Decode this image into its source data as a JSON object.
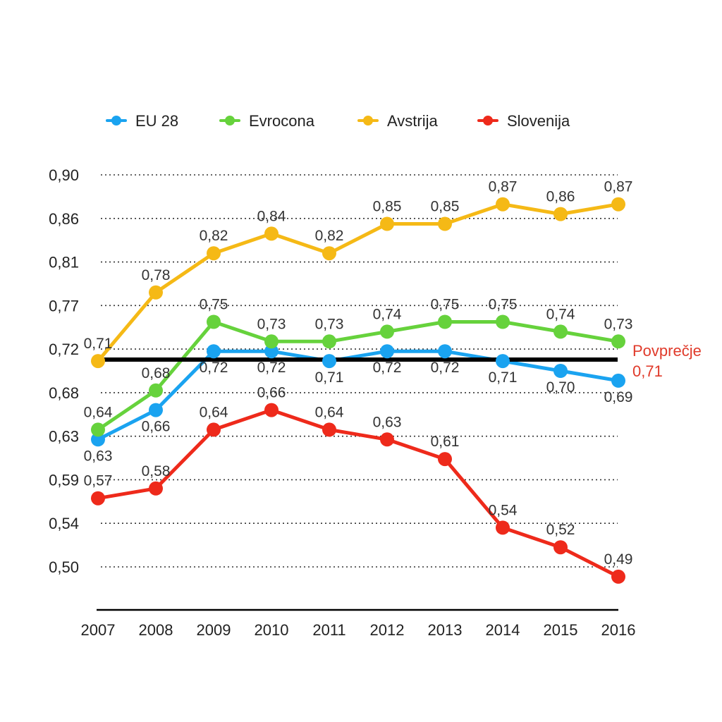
{
  "colors": {
    "eu28": "#1aa3f0",
    "evrocona": "#66d23c",
    "avstrija": "#f5b916",
    "slovenija": "#ee2a1b",
    "average_line": "#000000",
    "average_label": "#e03a2a",
    "grid": "#333333",
    "axis": "#000000"
  },
  "chart_data": {
    "type": "line",
    "x": [
      "2007",
      "2008",
      "2009",
      "2010",
      "2011",
      "2012",
      "2013",
      "2014",
      "2015",
      "2016"
    ],
    "yticks": [
      "0,50",
      "0,54",
      "0,59",
      "0,63",
      "0,68",
      "0,72",
      "0,77",
      "0,81",
      "0,86",
      "0,90"
    ],
    "ylim": [
      0.5,
      0.9
    ],
    "grid": "horizontal dotted",
    "legend_position": "top",
    "series": [
      {
        "name": "EU 28",
        "key": "eu28",
        "values": [
          0.63,
          0.66,
          0.72,
          0.72,
          0.71,
          0.72,
          0.72,
          0.71,
          0.7,
          0.69
        ],
        "labels": [
          "0,63",
          "0,66",
          "0,72",
          "0,72",
          "0,71",
          "0,72",
          "0,72",
          "0,71",
          "0,70",
          "0,69"
        ]
      },
      {
        "name": "Evrocona",
        "key": "evrocona",
        "values": [
          0.64,
          0.68,
          0.75,
          0.73,
          0.73,
          0.74,
          0.75,
          0.75,
          0.74,
          0.73
        ],
        "labels": [
          "0,64",
          "0,68",
          "0,75",
          "0,73",
          "0,73",
          "0,74",
          "0,75",
          "0,75",
          "0,74",
          "0,73"
        ]
      },
      {
        "name": "Avstrija",
        "key": "avstrija",
        "values": [
          0.71,
          0.78,
          0.82,
          0.84,
          0.82,
          0.85,
          0.85,
          0.87,
          0.86,
          0.87
        ],
        "labels": [
          "0,71",
          "0,78",
          "0,82",
          "0,84",
          "0,82",
          "0,85",
          "0,85",
          "0,87",
          "0,86",
          "0,87"
        ]
      },
      {
        "name": "Slovenija",
        "key": "slovenija",
        "values": [
          0.57,
          0.58,
          0.64,
          0.66,
          0.64,
          0.63,
          0.61,
          0.54,
          0.52,
          0.49
        ],
        "labels": [
          "0,57",
          "0,58",
          "0,64",
          "0,66",
          "0,64",
          "0,63",
          "0,61",
          "0,54",
          "0,52",
          "0,49"
        ]
      }
    ],
    "average": {
      "value": 0.71,
      "label": "Povprečje",
      "value_label": "0,71"
    }
  }
}
